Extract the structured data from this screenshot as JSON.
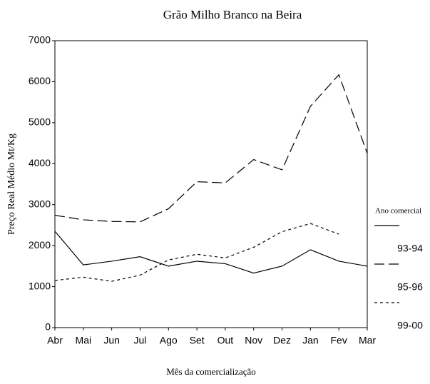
{
  "chart_data": {
    "type": "line",
    "title": "Grão Milho Branco na Beira",
    "ylabel": "Preço Real Médio Mt/Kg",
    "xlabel": "Mês da comercialização",
    "legend_title": "Ano comercial",
    "categories": [
      "Abr",
      "Mai",
      "Jun",
      "Jul",
      "Ago",
      "Set",
      "Out",
      "Nov",
      "Dez",
      "Jan",
      "Fev",
      "Mar"
    ],
    "series": [
      {
        "name": "93-94",
        "color": "#000000",
        "dash": "solid",
        "values": [
          2350,
          1530,
          1620,
          1730,
          1500,
          1620,
          1560,
          1330,
          1500,
          1900,
          1620,
          1500
        ]
      },
      {
        "name": "95-96",
        "color": "#000000",
        "dash": "long",
        "values": [
          2740,
          2630,
          2590,
          2580,
          2900,
          3560,
          3530,
          4100,
          3850,
          5400,
          6170,
          4250
        ]
      },
      {
        "name": "99-00",
        "color": "#000000",
        "dash": "short",
        "values": [
          1150,
          1230,
          1130,
          1280,
          1650,
          1790,
          1700,
          1960,
          2340,
          2540,
          2280,
          null
        ]
      }
    ],
    "ylim": [
      0,
      7000
    ],
    "yticks": [
      0,
      1000,
      2000,
      3000,
      4000,
      5000,
      6000,
      7000
    ],
    "legend": "right"
  }
}
